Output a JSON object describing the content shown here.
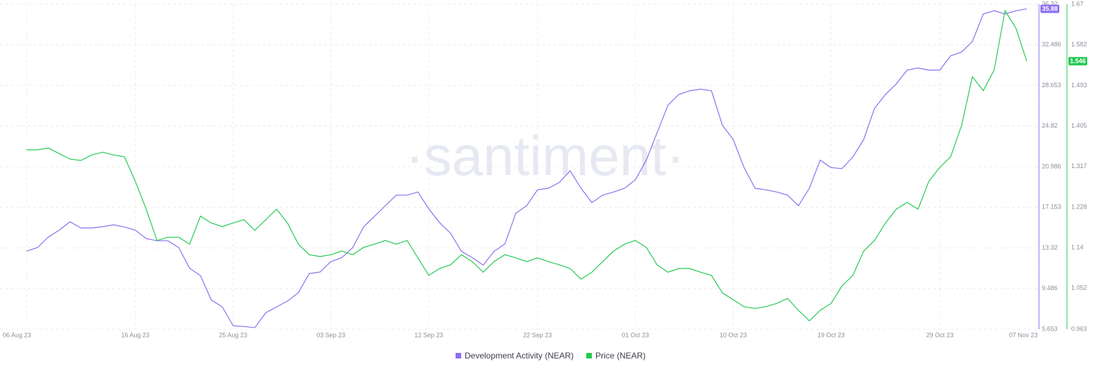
{
  "chart_data": {
    "type": "line",
    "watermark": "·santiment·",
    "x": [
      "2023-08-06",
      "2023-08-07",
      "2023-08-08",
      "2023-08-09",
      "2023-08-10",
      "2023-08-11",
      "2023-08-12",
      "2023-08-13",
      "2023-08-14",
      "2023-08-15",
      "2023-08-16",
      "2023-08-17",
      "2023-08-18",
      "2023-08-19",
      "2023-08-20",
      "2023-08-21",
      "2023-08-22",
      "2023-08-23",
      "2023-08-24",
      "2023-08-25",
      "2023-08-26",
      "2023-08-27",
      "2023-08-28",
      "2023-08-29",
      "2023-08-30",
      "2023-08-31",
      "2023-09-01",
      "2023-09-02",
      "2023-09-03",
      "2023-09-04",
      "2023-09-05",
      "2023-09-06",
      "2023-09-07",
      "2023-09-08",
      "2023-09-09",
      "2023-09-10",
      "2023-09-11",
      "2023-09-12",
      "2023-09-13",
      "2023-09-14",
      "2023-09-15",
      "2023-09-16",
      "2023-09-17",
      "2023-09-18",
      "2023-09-19",
      "2023-09-20",
      "2023-09-21",
      "2023-09-22",
      "2023-09-23",
      "2023-09-24",
      "2023-09-25",
      "2023-09-26",
      "2023-09-27",
      "2023-09-28",
      "2023-09-29",
      "2023-09-30",
      "2023-10-01",
      "2023-10-02",
      "2023-10-03",
      "2023-10-04",
      "2023-10-05",
      "2023-10-06",
      "2023-10-07",
      "2023-10-08",
      "2023-10-09",
      "2023-10-10",
      "2023-10-11",
      "2023-10-12",
      "2023-10-13",
      "2023-10-14",
      "2023-10-15",
      "2023-10-16",
      "2023-10-17",
      "2023-10-18",
      "2023-10-19",
      "2023-10-20",
      "2023-10-21",
      "2023-10-22",
      "2023-10-23",
      "2023-10-24",
      "2023-10-25",
      "2023-10-26",
      "2023-10-27",
      "2023-10-28",
      "2023-10-29",
      "2023-10-30",
      "2023-10-31",
      "2023-11-01",
      "2023-11-02",
      "2023-11-03",
      "2023-11-04",
      "2023-11-05",
      "2023-11-06"
    ],
    "xlim": [
      "2023-08-06",
      "2023-11-07"
    ],
    "xticks": [
      {
        "value": "2023-08-06",
        "label": "06 Aug 23"
      },
      {
        "value": "2023-08-16",
        "label": "16 Aug 23"
      },
      {
        "value": "2023-08-25",
        "label": "25 Aug 23"
      },
      {
        "value": "2023-09-03",
        "label": "03 Sep 23"
      },
      {
        "value": "2023-09-12",
        "label": "12 Sep 23"
      },
      {
        "value": "2023-09-22",
        "label": "22 Sep 23"
      },
      {
        "value": "2023-10-01",
        "label": "01 Oct 23"
      },
      {
        "value": "2023-10-10",
        "label": "10 Oct 23"
      },
      {
        "value": "2023-10-19",
        "label": "19 Oct 23"
      },
      {
        "value": "2023-10-29",
        "label": "29 Oct 23"
      },
      {
        "value": "2023-11-07",
        "label": "07 Nov 23"
      }
    ],
    "ylim": [
      5.653,
      36.32
    ],
    "yticks": [
      5.653,
      9.486,
      13.32,
      17.153,
      20.986,
      24.82,
      28.653,
      32.486,
      36.32
    ],
    "y2lim": [
      0.963,
      1.67
    ],
    "y2ticks": [
      0.963,
      1.052,
      1.14,
      1.228,
      1.317,
      1.405,
      1.493,
      1.582,
      1.67
    ],
    "grid": true,
    "legend": "bottom",
    "series": [
      {
        "name": "Development Activity (NEAR)",
        "color": "#8c6ff0",
        "axis": "y",
        "last_value": 35.88,
        "values": [
          13.02,
          13.35,
          14.34,
          15.0,
          15.79,
          15.2,
          15.2,
          15.33,
          15.5,
          15.3,
          15.0,
          14.2,
          14.0,
          14.0,
          13.35,
          11.4,
          10.7,
          8.4,
          7.76,
          5.98,
          5.9,
          5.8,
          7.2,
          7.76,
          8.3,
          9.1,
          10.9,
          11.05,
          12.04,
          12.4,
          13.35,
          15.3,
          16.3,
          17.3,
          18.3,
          18.3,
          18.6,
          17.0,
          15.7,
          14.7,
          13.0,
          12.4,
          11.7,
          13.0,
          13.7,
          16.6,
          17.3,
          18.8,
          18.95,
          19.5,
          20.6,
          18.95,
          17.6,
          18.3,
          18.6,
          18.95,
          19.74,
          21.6,
          24.2,
          26.8,
          27.8,
          28.15,
          28.3,
          28.15,
          24.9,
          23.55,
          20.9,
          18.95,
          18.8,
          18.6,
          18.3,
          17.3,
          18.95,
          21.6,
          20.9,
          20.8,
          21.9,
          23.55,
          26.5,
          27.8,
          28.8,
          30.1,
          30.3,
          30.1,
          30.1,
          31.45,
          31.8,
          32.8,
          35.4,
          35.7,
          35.4,
          35.7,
          35.88
        ]
      },
      {
        "name": "Price (NEAR)",
        "color": "#26c953",
        "axis": "y2",
        "last_value": 1.546,
        "values": [
          1.353,
          1.353,
          1.357,
          1.345,
          1.333,
          1.33,
          1.342,
          1.348,
          1.342,
          1.338,
          1.285,
          1.224,
          1.156,
          1.163,
          1.163,
          1.148,
          1.209,
          1.194,
          1.186,
          1.194,
          1.201,
          1.178,
          1.201,
          1.224,
          1.194,
          1.148,
          1.125,
          1.121,
          1.125,
          1.133,
          1.125,
          1.141,
          1.148,
          1.156,
          1.148,
          1.156,
          1.118,
          1.08,
          1.095,
          1.103,
          1.125,
          1.11,
          1.087,
          1.11,
          1.125,
          1.118,
          1.11,
          1.118,
          1.11,
          1.103,
          1.095,
          1.072,
          1.087,
          1.11,
          1.133,
          1.148,
          1.156,
          1.141,
          1.103,
          1.087,
          1.095,
          1.095,
          1.087,
          1.08,
          1.042,
          1.027,
          1.012,
          1.008,
          1.012,
          1.019,
          1.03,
          1.004,
          0.981,
          1.004,
          1.019,
          1.057,
          1.08,
          1.133,
          1.156,
          1.194,
          1.224,
          1.239,
          1.224,
          1.285,
          1.315,
          1.338,
          1.406,
          1.512,
          1.482,
          1.527,
          1.656,
          1.618,
          1.546
        ]
      }
    ]
  }
}
